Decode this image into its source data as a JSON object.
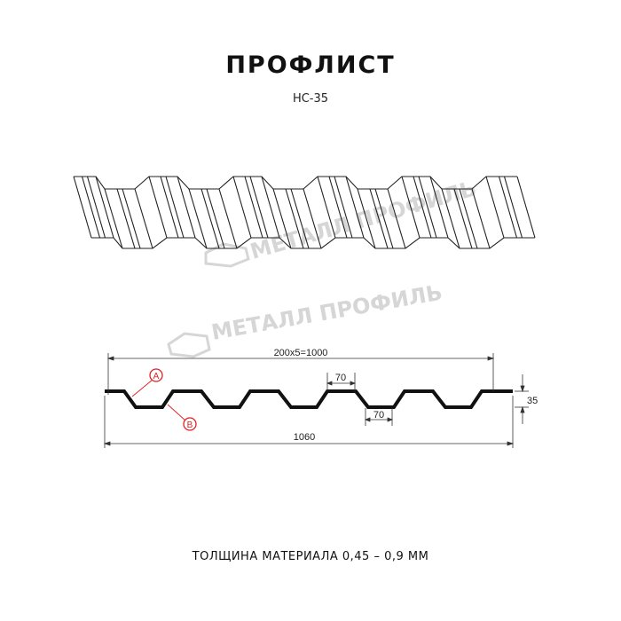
{
  "header": {
    "title": "ПРОФЛИСТ",
    "subtitle": "НС-35"
  },
  "watermark": {
    "text": "МЕТАЛЛ ПРОФИЛЬ"
  },
  "dimensions": {
    "pitch_total": "200x5=1000",
    "top_flat": "70",
    "bottom_flat": "70",
    "height": "35",
    "full_width": "1060"
  },
  "markers": {
    "a": "A",
    "b": "B",
    "color": "#e02020"
  },
  "footer": {
    "thickness": "ТОЛЩИНА МАТЕРИАЛА 0,45 – 0,9 ММ"
  }
}
